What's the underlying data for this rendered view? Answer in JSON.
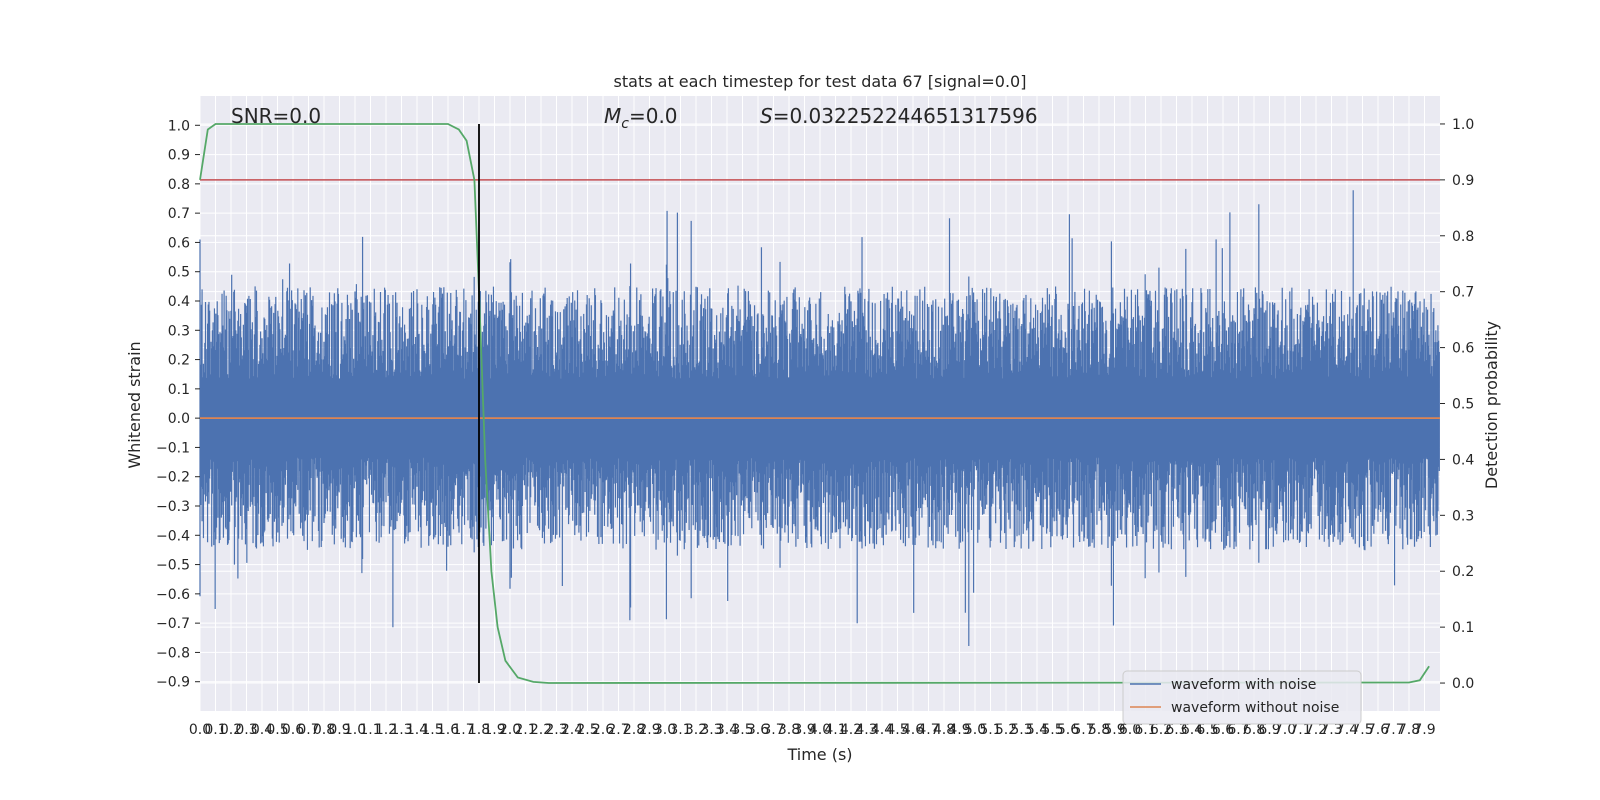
{
  "chart_data": {
    "type": "line",
    "title": "stats at each timestep for test data 67 [signal=0.0]",
    "xlabel": "Time (s)",
    "ylabel": "Whitened strain",
    "y2label": "Detection probability",
    "xlim": [
      0.0,
      8.0
    ],
    "ylim": [
      -1.0,
      1.1
    ],
    "y2lim": [
      -0.05,
      1.05
    ],
    "x_ticks": [
      "0.0",
      "0.1",
      "0.2",
      "0.3",
      "0.4",
      "0.5",
      "0.6",
      "0.7",
      "0.8",
      "0.9",
      "1.0",
      "1.1",
      "1.2",
      "1.3",
      "1.4",
      "1.5",
      "1.6",
      "1.7",
      "1.8",
      "1.9",
      "2.0",
      "2.1",
      "2.2",
      "2.3",
      "2.4",
      "2.5",
      "2.6",
      "2.7",
      "2.8",
      "2.9",
      "3.0",
      "3.1",
      "3.2",
      "3.3",
      "3.4",
      "3.5",
      "3.6",
      "3.7",
      "3.8",
      "3.9",
      "4.0",
      "4.1",
      "4.2",
      "4.3",
      "4.4",
      "4.5",
      "4.6",
      "4.7",
      "4.8",
      "4.9",
      "5.0",
      "5.1",
      "5.2",
      "5.3",
      "5.4",
      "5.5",
      "5.6",
      "5.7",
      "5.8",
      "5.9",
      "6.0",
      "6.1",
      "6.2",
      "6.3",
      "6.4",
      "6.5",
      "6.6",
      "6.7",
      "6.8",
      "6.9",
      "7.0",
      "7.1",
      "7.2",
      "7.3",
      "7.4",
      "7.5",
      "7.6",
      "7.7",
      "7.8",
      "7.9"
    ],
    "y_ticks": [
      "-0.9",
      "-0.8",
      "-0.7",
      "-0.6",
      "-0.5",
      "-0.4",
      "-0.3",
      "-0.2",
      "-0.1",
      "0.0",
      "0.1",
      "0.2",
      "0.3",
      "0.4",
      "0.5",
      "0.6",
      "0.7",
      "0.8",
      "0.9",
      "1.0"
    ],
    "y2_ticks": [
      "0.0",
      "0.1",
      "0.2",
      "0.3",
      "0.4",
      "0.5",
      "0.6",
      "0.7",
      "0.8",
      "0.9",
      "1.0"
    ],
    "annotations": {
      "snr": "SNR=0.0",
      "mc": "=0.0",
      "mc_symbol": "M",
      "mc_subscript": "c",
      "s": "=0.032252244651317596",
      "s_symbol": "S"
    },
    "series": [
      {
        "name": "waveform with noise",
        "color": "#4c72b0",
        "kind": "noise",
        "amplitude_typical": 0.45,
        "amplitude_max": 1.0
      },
      {
        "name": "waveform without noise",
        "color": "#dd8452",
        "values": [
          [
            0.0,
            0.0
          ],
          [
            8.0,
            0.0
          ]
        ]
      },
      {
        "color": "#55a868",
        "axis": "y2",
        "values": [
          [
            0.0,
            0.9
          ],
          [
            0.05,
            0.99
          ],
          [
            0.1,
            1.0
          ],
          [
            1.6,
            1.0
          ],
          [
            1.67,
            0.99
          ],
          [
            1.72,
            0.97
          ],
          [
            1.77,
            0.9
          ],
          [
            1.8,
            0.7
          ],
          [
            1.84,
            0.4
          ],
          [
            1.88,
            0.2
          ],
          [
            1.92,
            0.1
          ],
          [
            1.97,
            0.04
          ],
          [
            2.05,
            0.01
          ],
          [
            2.15,
            0.002
          ],
          [
            2.25,
            0.0
          ],
          [
            7.8,
            0.001
          ],
          [
            7.87,
            0.005
          ],
          [
            7.93,
            0.03
          ]
        ]
      }
    ],
    "threshold": {
      "color": "#c44e52",
      "y2": 0.9
    },
    "vline": {
      "color": "#000000",
      "x": 1.8
    },
    "legend": {
      "position": "lower-right"
    },
    "grid": true
  }
}
